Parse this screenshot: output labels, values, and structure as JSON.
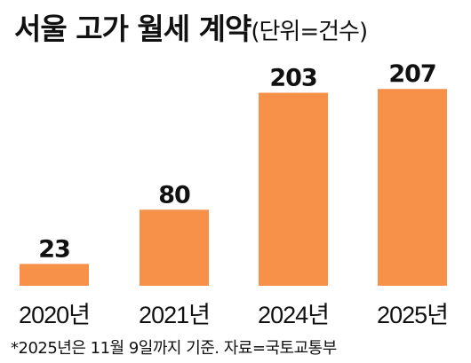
{
  "title": "서울 고가 월세 계약",
  "unit_label": "(단위=건수)",
  "footnote": "*2025년은 11월 9일까지 기준. 자료=국토교통부",
  "colors": {
    "bar": "#f7914a",
    "text": "#111111"
  },
  "chart_data": {
    "type": "bar",
    "categories": [
      "2020년",
      "2021년",
      "2024년",
      "2025년"
    ],
    "values": [
      23,
      80,
      203,
      207
    ],
    "data_labels": [
      "23",
      "80",
      "203",
      "207"
    ],
    "title": "서울 고가 월세 계약",
    "xlabel": "",
    "ylabel": "",
    "ylim": [
      0,
      210
    ],
    "grid": false,
    "legend": "none"
  }
}
